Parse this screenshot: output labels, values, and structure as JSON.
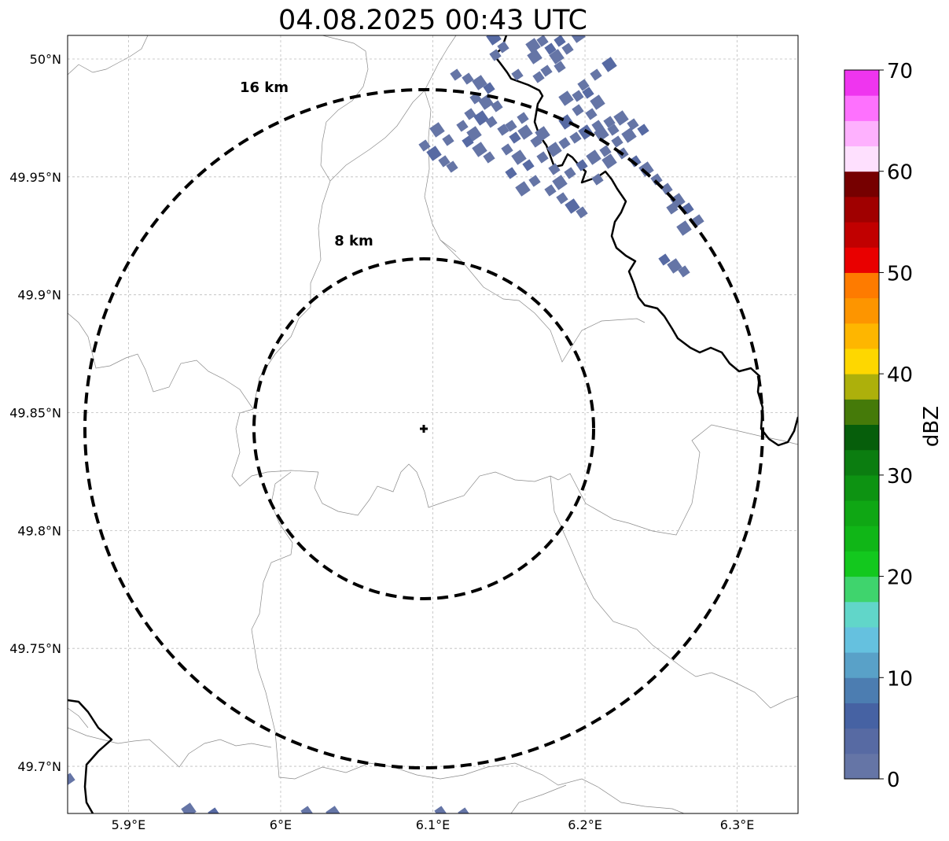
{
  "title": "04.08.2025 00:43 UTC",
  "map": {
    "lon_range": [
      5.86,
      6.34
    ],
    "lat_range": [
      49.68,
      50.01
    ],
    "x_ticks": [
      {
        "value": 5.9,
        "label": "5.9°E"
      },
      {
        "value": 6.0,
        "label": "6°E"
      },
      {
        "value": 6.1,
        "label": "6.1°E"
      },
      {
        "value": 6.2,
        "label": "6.2°E"
      },
      {
        "value": 6.3,
        "label": "6.3°E"
      }
    ],
    "y_ticks": [
      {
        "value": 49.7,
        "label": "49.7°N"
      },
      {
        "value": 49.75,
        "label": "49.75°N"
      },
      {
        "value": 49.8,
        "label": "49.8°N"
      },
      {
        "value": 49.85,
        "label": "49.85°N"
      },
      {
        "value": 49.9,
        "label": "49.9°N"
      },
      {
        "value": 49.95,
        "label": "49.95°N"
      },
      {
        "value": 50.0,
        "label": "50°N"
      }
    ],
    "radar_center": {
      "lon": 6.095,
      "lat": 49.843
    },
    "range_rings": [
      {
        "label": "8 km"
      },
      {
        "label": "16 km"
      }
    ],
    "grid": true
  },
  "colorbar": {
    "label": "dBZ",
    "ticks": [
      "0",
      "10",
      "20",
      "30",
      "40",
      "50",
      "60",
      "70"
    ],
    "colors": [
      "#6575a6",
      "#576aa3",
      "#4662a3",
      "#4c7db1",
      "#59a1c8",
      "#65c1df",
      "#61d6c9",
      "#3fd46d",
      "#13c81e",
      "#10b617",
      "#0fa714",
      "#0d9312",
      "#0b7d10",
      "#065e0b",
      "#457a09",
      "#adb00b",
      "#fed700",
      "#feb600",
      "#fd9500",
      "#fe7b00",
      "#e90000",
      "#c10000",
      "#a00000",
      "#760000",
      "#fee0fe",
      "#feb1fe",
      "#fe71fe",
      "#ef35ef"
    ]
  }
}
